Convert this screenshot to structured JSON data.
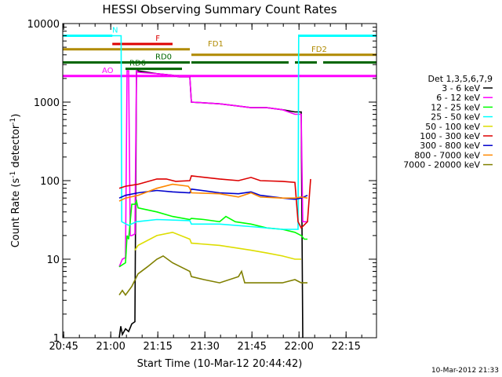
{
  "chart_data": {
    "type": "line",
    "title": "HESSI Observing Summary Count Rates",
    "xlabel": "Start Time (10-Mar-12 20:44:42)",
    "ylabel": "Count Rate (s⁻¹ detector⁻¹)",
    "ylabel_parts": [
      "Count Rate (s",
      "-1",
      " detector",
      "-1",
      ")"
    ],
    "x_unit": "minutes since 20:44:42",
    "xlim": [
      0,
      100
    ],
    "ylim": [
      1,
      10000
    ],
    "yscale": "log",
    "x_ticks": [
      {
        "value": 0.3,
        "label": "20:45"
      },
      {
        "value": 15.3,
        "label": "21:00"
      },
      {
        "value": 30.3,
        "label": "21:15"
      },
      {
        "value": 45.3,
        "label": "21:30"
      },
      {
        "value": 60.3,
        "label": "21:45"
      },
      {
        "value": 75.3,
        "label": "22:00"
      },
      {
        "value": 90.3,
        "label": "22:15"
      }
    ],
    "y_ticks": [
      {
        "value": 1,
        "label": "1"
      },
      {
        "value": 10,
        "label": "10"
      },
      {
        "value": 100,
        "label": "100"
      },
      {
        "value": 1000,
        "label": "1000"
      },
      {
        "value": 10000,
        "label": "10000"
      }
    ],
    "legend_title": "Det 1,3,5,6,7,9",
    "legend_position": "right",
    "series": [
      {
        "name": "3 - 6 keV",
        "color": "#000000",
        "points": [
          [
            18,
            1
          ],
          [
            18.5,
            1.4
          ],
          [
            19,
            1.1
          ],
          [
            20,
            1.3
          ],
          [
            21,
            1.2
          ],
          [
            22,
            1.5
          ],
          [
            23,
            1.6
          ],
          [
            23.5,
            2500
          ],
          [
            24,
            2500
          ],
          [
            30,
            2300
          ],
          [
            35,
            2200
          ],
          [
            37,
            2100
          ],
          [
            40.5,
            2100
          ],
          [
            41,
            1000
          ],
          [
            50,
            950
          ],
          [
            55,
            900
          ],
          [
            60,
            850
          ],
          [
            65,
            850
          ],
          [
            70,
            800
          ],
          [
            74,
            750
          ],
          [
            76,
            750
          ],
          [
            76.5,
            1
          ]
        ]
      },
      {
        "name": "6 - 12 keV",
        "color": "#ff00ff",
        "points": [
          [
            18,
            8
          ],
          [
            19,
            10
          ],
          [
            20,
            10.5
          ],
          [
            20.5,
            2500
          ],
          [
            21,
            2500
          ],
          [
            21.5,
            20
          ],
          [
            22,
            20
          ],
          [
            23,
            21
          ],
          [
            23.5,
            2500
          ],
          [
            24,
            2400
          ],
          [
            30,
            2300
          ],
          [
            35,
            2200
          ],
          [
            37,
            2100
          ],
          [
            40.5,
            2100
          ],
          [
            41,
            1000
          ],
          [
            50,
            950
          ],
          [
            55,
            900
          ],
          [
            60,
            850
          ],
          [
            65,
            850
          ],
          [
            70,
            800
          ],
          [
            74,
            700
          ],
          [
            76,
            700
          ],
          [
            76.5,
            30
          ],
          [
            78,
            30
          ]
        ]
      },
      {
        "name": "12 - 25 keV",
        "color": "#00ff00",
        "points": [
          [
            18,
            8
          ],
          [
            20,
            9
          ],
          [
            20.5,
            20
          ],
          [
            21,
            18
          ],
          [
            22,
            50
          ],
          [
            23,
            50
          ],
          [
            23.5,
            55
          ],
          [
            24,
            45
          ],
          [
            30,
            40
          ],
          [
            35,
            35
          ],
          [
            40.5,
            32
          ],
          [
            41,
            33
          ],
          [
            45,
            32
          ],
          [
            50,
            30
          ],
          [
            52,
            35
          ],
          [
            55,
            30
          ],
          [
            60,
            28
          ],
          [
            65,
            25
          ],
          [
            70,
            24
          ],
          [
            74,
            22
          ],
          [
            76,
            20
          ],
          [
            77,
            18
          ],
          [
            78,
            18
          ]
        ]
      },
      {
        "name": "25 - 50 keV",
        "color": "#00ffff",
        "points": [
          [
            0,
            7000
          ],
          [
            10,
            7000
          ],
          [
            18,
            7000
          ],
          [
            18.6,
            7000
          ],
          [
            18.8,
            30
          ],
          [
            21,
            27
          ],
          [
            23.5,
            30
          ],
          [
            30,
            32
          ],
          [
            40.5,
            31
          ],
          [
            41,
            28
          ],
          [
            50,
            28
          ],
          [
            60,
            26
          ],
          [
            70,
            24
          ],
          [
            74,
            24
          ],
          [
            75,
            24
          ],
          [
            75.2,
            7000
          ],
          [
            80,
            7000
          ],
          [
            90,
            7000
          ],
          [
            99,
            7000
          ]
        ]
      },
      {
        "name": "50 - 100 keV",
        "color": "#dddd00",
        "points": [
          [
            23,
            13
          ],
          [
            24,
            15
          ],
          [
            30,
            20
          ],
          [
            35,
            22
          ],
          [
            40.5,
            18
          ],
          [
            41,
            16
          ],
          [
            50,
            15
          ],
          [
            60,
            13
          ],
          [
            65,
            12
          ],
          [
            70,
            11
          ],
          [
            74,
            10
          ],
          [
            76,
            10
          ]
        ]
      },
      {
        "name": "100 - 300 keV",
        "color": "#dd0000",
        "points": [
          [
            18,
            80
          ],
          [
            20,
            85
          ],
          [
            24,
            90
          ],
          [
            30,
            105
          ],
          [
            33,
            105
          ],
          [
            36,
            98
          ],
          [
            40.5,
            100
          ],
          [
            41,
            115
          ],
          [
            50,
            105
          ],
          [
            56,
            100
          ],
          [
            60,
            110
          ],
          [
            63,
            100
          ],
          [
            70,
            98
          ],
          [
            74,
            95
          ],
          [
            75,
            30
          ],
          [
            76,
            25
          ],
          [
            78,
            30
          ],
          [
            79,
            105
          ]
        ]
      },
      {
        "name": "300 - 800 keV",
        "color": "#0000cc",
        "points": [
          [
            18,
            60
          ],
          [
            20,
            65
          ],
          [
            24,
            70
          ],
          [
            30,
            75
          ],
          [
            35,
            72
          ],
          [
            40.5,
            70
          ],
          [
            41,
            78
          ],
          [
            50,
            70
          ],
          [
            56,
            68
          ],
          [
            60,
            72
          ],
          [
            63,
            65
          ],
          [
            70,
            60
          ],
          [
            74,
            58
          ],
          [
            76,
            60
          ],
          [
            78,
            65
          ]
        ]
      },
      {
        "name": "800 - 7000 keV",
        "color": "#ff8800",
        "points": [
          [
            18,
            55
          ],
          [
            20,
            60
          ],
          [
            24,
            65
          ],
          [
            30,
            80
          ],
          [
            35,
            90
          ],
          [
            40,
            85
          ],
          [
            40.5,
            80
          ],
          [
            41,
            70
          ],
          [
            50,
            68
          ],
          [
            56,
            62
          ],
          [
            60,
            70
          ],
          [
            63,
            62
          ],
          [
            70,
            60
          ],
          [
            74,
            60
          ],
          [
            76,
            62
          ],
          [
            78,
            60
          ]
        ]
      },
      {
        "name": "7000 - 20000 keV",
        "color": "#808000",
        "points": [
          [
            18,
            3.5
          ],
          [
            19,
            4
          ],
          [
            20,
            3.5
          ],
          [
            22,
            4.5
          ],
          [
            24,
            6.5
          ],
          [
            27,
            8
          ],
          [
            30,
            10
          ],
          [
            32,
            11
          ],
          [
            35,
            9
          ],
          [
            40.5,
            7
          ],
          [
            41,
            6
          ],
          [
            45,
            5.5
          ],
          [
            50,
            5
          ],
          [
            56,
            6
          ],
          [
            57,
            7
          ],
          [
            58,
            5
          ],
          [
            60,
            5
          ],
          [
            65,
            5
          ],
          [
            70,
            5
          ],
          [
            74,
            5.5
          ],
          [
            76,
            5
          ],
          [
            78,
            5
          ]
        ]
      }
    ],
    "flag_bars": [
      {
        "label": "N",
        "color": "#00ffff",
        "y": 7000,
        "segments": [
          [
            0,
            15.8
          ],
          [
            75,
            100
          ]
        ]
      },
      {
        "label": "F",
        "color": "#dd0000",
        "y": 5500,
        "segments": [
          [
            15.8,
            35
          ]
        ]
      },
      {
        "label": "FD1",
        "color": "#b08a00",
        "y": 4700,
        "segments": [
          [
            0,
            40.5
          ]
        ]
      },
      {
        "label": "FD2",
        "color": "#b08a00",
        "y": 4000,
        "segments": [
          [
            41,
            100
          ]
        ]
      },
      {
        "label": "RD0",
        "color": "#006600",
        "y": 3200,
        "segments": [
          [
            0,
            40.5
          ],
          [
            41,
            72
          ],
          [
            74,
            81
          ],
          [
            83,
            100
          ]
        ]
      },
      {
        "label": "RD6",
        "color": "#006600",
        "y": 2650,
        "segments": [
          [
            20,
            38
          ]
        ]
      },
      {
        "label": "AO",
        "color": "#ff00ff",
        "y": 2150,
        "segments": [
          [
            0,
            100
          ]
        ]
      }
    ],
    "grid": false
  },
  "footer": {
    "timestamp": "10-Mar-2012 21:33"
  }
}
